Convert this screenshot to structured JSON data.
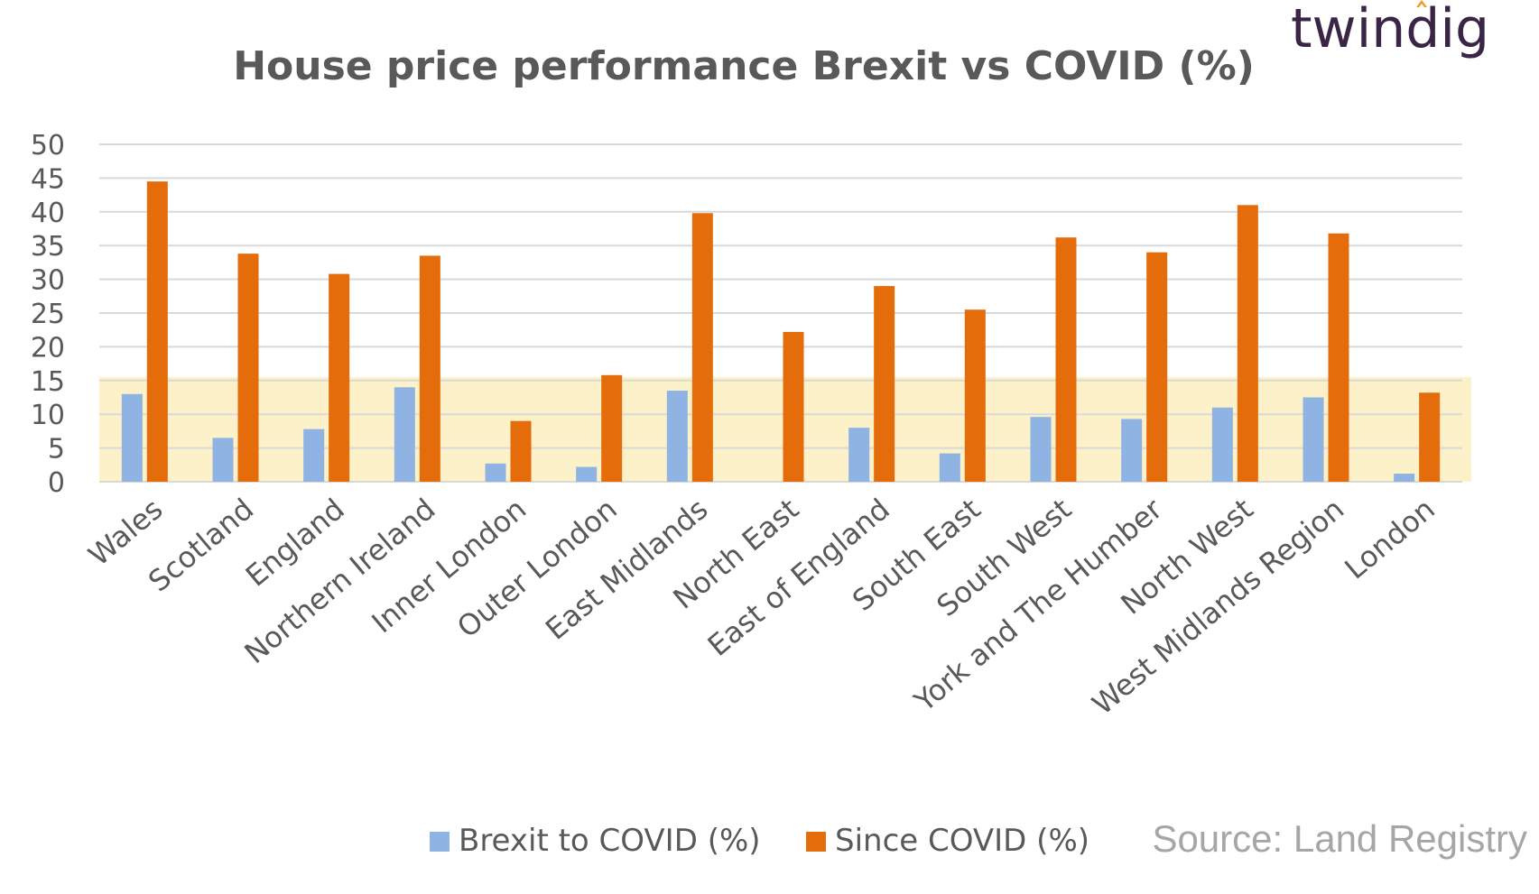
{
  "brand": {
    "name": "twindig"
  },
  "source": "Source: Land Registry",
  "chart_data": {
    "type": "bar",
    "title": "House price performance Brexit vs COVID (%)",
    "xlabel": "",
    "ylabel": "",
    "ylim": [
      0,
      50
    ],
    "yticks": [
      0,
      5,
      10,
      15,
      20,
      25,
      30,
      35,
      40,
      45,
      50
    ],
    "grid": true,
    "legend_position": "bottom",
    "highlight_band": {
      "from": 0,
      "to": 15.5,
      "color": "#fdf1c9"
    },
    "categories": [
      "Wales",
      "Scotland",
      "England",
      "Northern Ireland",
      "Inner London",
      "Outer London",
      "East Midlands",
      "North East",
      "East of England",
      "South East",
      "South West",
      "York and The Humber",
      "North West",
      "West Midlands Region",
      "London"
    ],
    "series": [
      {
        "name": "Brexit to COVID (%)",
        "color": "#8fb4e3",
        "values": [
          13,
          6.5,
          7.8,
          14,
          2.7,
          2.2,
          13.5,
          0,
          8,
          4.2,
          9.6,
          9.3,
          11,
          12.5,
          1.2
        ]
      },
      {
        "name": "Since COVID (%)",
        "color": "#e46c0a",
        "values": [
          44.5,
          33.8,
          30.8,
          33.5,
          9,
          15.8,
          39.8,
          22.2,
          29,
          25.5,
          36.2,
          34,
          41,
          36.8,
          13.2
        ]
      }
    ]
  }
}
